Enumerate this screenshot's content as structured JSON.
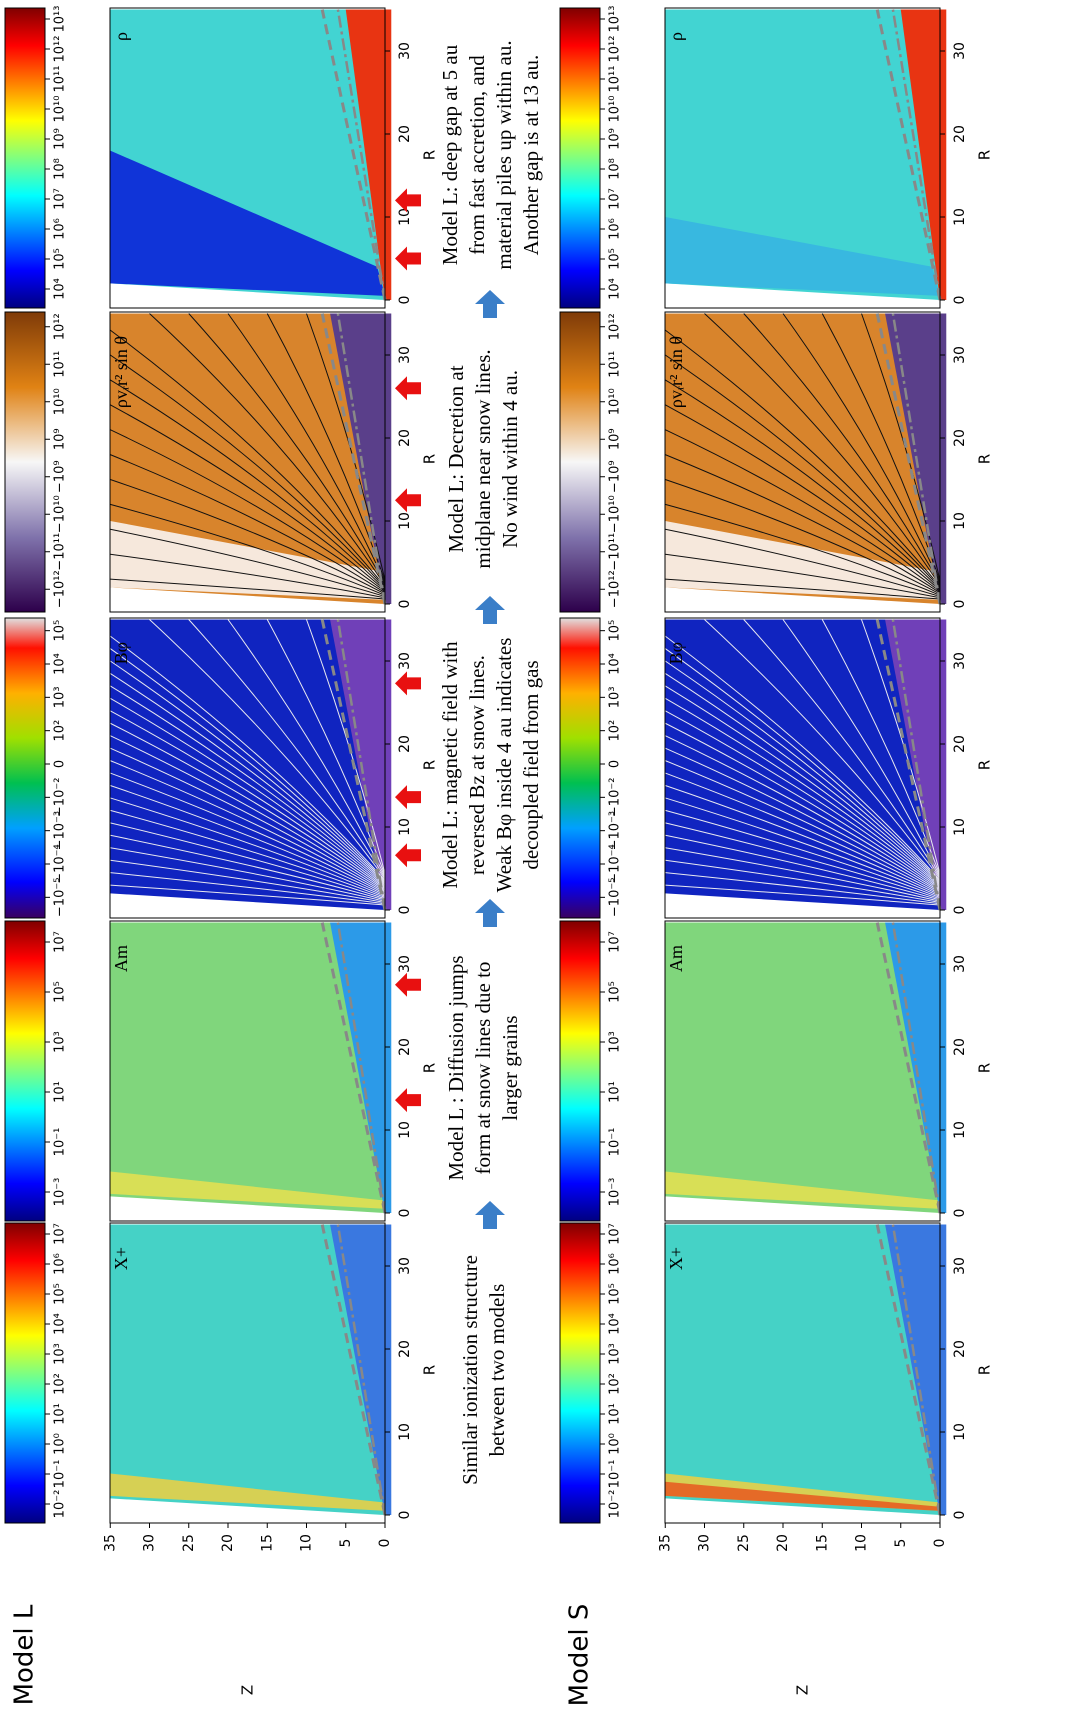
{
  "models": [
    {
      "label": "Model L",
      "panels": [
        {
          "label": "X+",
          "colorbar": [
            "10⁻²",
            "10⁻¹",
            "10⁰",
            "10¹",
            "10²",
            "10³",
            "10⁴",
            "10⁵",
            "10⁶",
            "10⁷"
          ]
        },
        {
          "label": "Am",
          "colorbar": [
            "10⁻³",
            "10⁻¹",
            "10¹",
            "10³",
            "10⁵",
            "10⁷"
          ]
        },
        {
          "label": "Bφ",
          "colorbar": [
            "−10⁻⁵",
            "−10⁻⁴",
            "−10⁻³",
            "−10⁻²",
            "0",
            "10²",
            "10³",
            "10⁴",
            "10⁵"
          ]
        },
        {
          "label": "ρvᵣr² sin θ",
          "colorbar": [
            "−10¹²",
            "−10¹¹",
            "−10¹⁰",
            "−10⁹",
            "10⁹",
            "10¹⁰",
            "10¹¹",
            "10¹²"
          ]
        },
        {
          "label": "ρ",
          "colorbar": [
            "10⁴",
            "10⁵",
            "10⁶",
            "10⁷",
            "10⁸",
            "10⁹",
            "10¹⁰",
            "10¹¹",
            "10¹²",
            "10¹³"
          ]
        }
      ]
    },
    {
      "label": "Model S",
      "panels": [
        {
          "label": "X+",
          "colorbar": [
            "10⁻²",
            "10⁻¹",
            "10⁰",
            "10¹",
            "10²",
            "10³",
            "10⁴",
            "10⁵",
            "10⁶",
            "10⁷"
          ]
        },
        {
          "label": "Am",
          "colorbar": [
            "10⁻³",
            "10⁻¹",
            "10¹",
            "10³",
            "10⁵",
            "10⁷"
          ]
        },
        {
          "label": "Bφ",
          "colorbar": [
            "−10⁻⁵",
            "−10⁻⁴",
            "−10⁻³",
            "−10⁻²",
            "0",
            "10²",
            "10³",
            "10⁴",
            "10⁵"
          ]
        },
        {
          "label": "ρvᵣr² sin θ",
          "colorbar": [
            "−10¹²",
            "−10¹¹",
            "−10¹⁰",
            "−10⁹",
            "10⁹",
            "10¹⁰",
            "10¹¹",
            "10¹²"
          ]
        },
        {
          "label": "ρ",
          "colorbar": [
            "10⁴",
            "10⁵",
            "10⁶",
            "10⁷",
            "10⁸",
            "10⁹",
            "10¹⁰",
            "10¹¹",
            "10¹²",
            "10¹³"
          ]
        }
      ]
    }
  ],
  "axes": {
    "r_label": "R",
    "r_ticks": [
      "0",
      "10",
      "20",
      "30"
    ],
    "z_label": "Z",
    "z_ticks": [
      "0",
      "5",
      "10",
      "15",
      "20",
      "25",
      "30",
      "35"
    ]
  },
  "annotations": [
    [
      "Similar  ionization structure",
      "between two models"
    ],
    [
      "Model L : Diffusion jumps",
      "form at snow lines  due to",
      "larger grains"
    ],
    [
      "Model L: magnetic  field  with",
      "reversed Bz at snow lines.",
      "Weak Bφ  inside 4 au indicates",
      "decoupled  field  from gas"
    ],
    [
      "Model L: Decretion at",
      "midplane near snow lines.",
      "No wind within 4 au."
    ],
    [
      "Model L: deep gap at 5 au",
      "from fast accretion,  and",
      "material  piles up within au.",
      "Another gap is at 13 au."
    ]
  ]
}
